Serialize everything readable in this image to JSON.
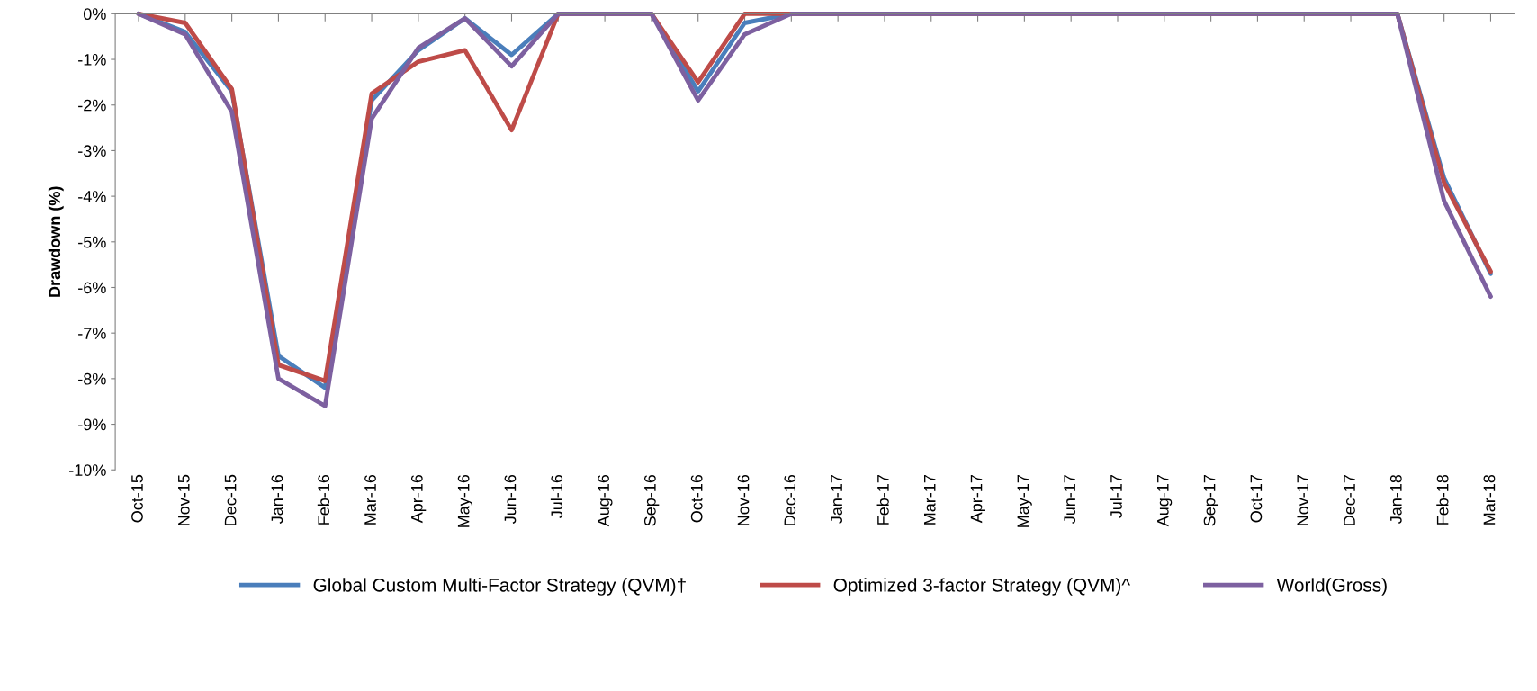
{
  "chart_data": {
    "type": "line",
    "ylabel": "Drawdown (%)",
    "categories": [
      "Oct-15",
      "Nov-15",
      "Dec-15",
      "Jan-16",
      "Feb-16",
      "Mar-16",
      "Apr-16",
      "May-16",
      "Jun-16",
      "Jul-16",
      "Aug-16",
      "Sep-16",
      "Oct-16",
      "Nov-16",
      "Dec-16",
      "Jan-17",
      "Feb-17",
      "Mar-17",
      "Apr-17",
      "May-17",
      "Jun-17",
      "Jul-17",
      "Aug-17",
      "Sep-17",
      "Oct-17",
      "Nov-17",
      "Dec-17",
      "Jan-18",
      "Feb-18",
      "Mar-18"
    ],
    "series": [
      {
        "name": "Global Custom Multi-Factor Strategy (QVM)†",
        "color": "#4a7ebb",
        "values": [
          0,
          -0.4,
          -1.7,
          -7.5,
          -8.2,
          -1.9,
          -0.8,
          -0.1,
          -0.9,
          0,
          0,
          0,
          -1.7,
          -0.2,
          0,
          0,
          0,
          0,
          0,
          0,
          0,
          0,
          0,
          0,
          0,
          0,
          0,
          0,
          -3.6,
          -5.7
        ]
      },
      {
        "name": "Optimized 3-factor Strategy (QVM)^",
        "color": "#be4b48",
        "values": [
          0,
          -0.2,
          -1.65,
          -7.7,
          -8.05,
          -1.75,
          -1.05,
          -0.8,
          -2.55,
          0,
          0,
          0,
          -1.5,
          0,
          0,
          0,
          0,
          0,
          0,
          0,
          0,
          0,
          0,
          0,
          0,
          0,
          0,
          0,
          -3.7,
          -5.65
        ]
      },
      {
        "name": "World(Gross)",
        "color": "#7d60a0",
        "values": [
          0,
          -0.45,
          -2.15,
          -8.0,
          -8.6,
          -2.3,
          -0.75,
          -0.1,
          -1.15,
          0,
          0,
          0,
          -1.9,
          -0.45,
          0,
          0,
          0,
          0,
          0,
          0,
          0,
          0,
          0,
          0,
          0,
          0,
          0,
          0,
          -4.1,
          -6.2
        ]
      }
    ],
    "ylim": [
      -10,
      0
    ],
    "yticks": [
      {
        "value": -10,
        "label": "-10%"
      },
      {
        "value": -9,
        "label": "-9%"
      },
      {
        "value": -8,
        "label": "-8%"
      },
      {
        "value": -7,
        "label": "-7%"
      },
      {
        "value": -6,
        "label": "-6%"
      },
      {
        "value": -5,
        "label": "-5%"
      },
      {
        "value": -4,
        "label": "-4%"
      },
      {
        "value": -3,
        "label": "-3%"
      },
      {
        "value": -2,
        "label": "-2%"
      },
      {
        "value": -1,
        "label": "-1%"
      },
      {
        "value": 0,
        "label": "0%"
      }
    ],
    "grid": false,
    "legend": "bottom",
    "marker": "none",
    "line_style": "solid"
  }
}
